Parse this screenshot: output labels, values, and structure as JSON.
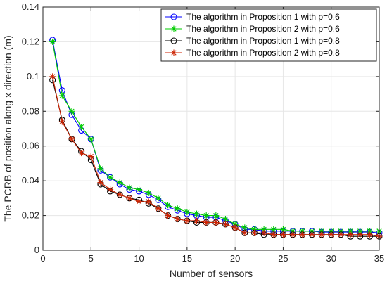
{
  "chart_data": {
    "type": "line",
    "title": "",
    "xlabel": "Number of sensors",
    "ylabel": "The PCRB of position along x direction (m)",
    "xlim": [
      0,
      35
    ],
    "ylim": [
      0,
      0.14
    ],
    "xticks": [
      0,
      5,
      10,
      15,
      20,
      25,
      30,
      35
    ],
    "yticks": [
      0,
      0.02,
      0.04,
      0.06,
      0.08,
      0.1,
      0.12,
      0.14
    ],
    "xtick_labels": [
      "0",
      "5",
      "10",
      "15",
      "20",
      "25",
      "30",
      "35"
    ],
    "ytick_labels": [
      "0",
      "0.02",
      "0.04",
      "0.06",
      "0.08",
      "0.1",
      "0.12",
      "0.14"
    ],
    "grid": true,
    "legend_position": "top-right",
    "x": [
      1,
      2,
      3,
      4,
      5,
      6,
      7,
      8,
      9,
      10,
      11,
      12,
      13,
      14,
      15,
      16,
      17,
      18,
      19,
      20,
      21,
      22,
      23,
      24,
      25,
      26,
      27,
      28,
      29,
      30,
      31,
      32,
      33,
      34,
      35
    ],
    "series": [
      {
        "name": "The algorithm in Proposition 1 with p=0.6",
        "color": "#0000ff",
        "marker": "circle",
        "values": [
          0.121,
          0.092,
          0.078,
          0.069,
          0.064,
          0.046,
          0.042,
          0.038,
          0.035,
          0.034,
          0.032,
          0.029,
          0.025,
          0.023,
          0.021,
          0.02,
          0.019,
          0.019,
          0.017,
          0.015,
          0.012,
          0.012,
          0.011,
          0.011,
          0.011,
          0.011,
          0.011,
          0.011,
          0.0105,
          0.0105,
          0.0105,
          0.0105,
          0.0105,
          0.0105,
          0.01
        ]
      },
      {
        "name": "The algorithm in Proposition 2 with p=0.6",
        "color": "#00cc00",
        "marker": "asterisk",
        "values": [
          0.12,
          0.089,
          0.08,
          0.071,
          0.064,
          0.047,
          0.042,
          0.039,
          0.036,
          0.035,
          0.033,
          0.03,
          0.026,
          0.024,
          0.022,
          0.021,
          0.02,
          0.02,
          0.018,
          0.015,
          0.013,
          0.012,
          0.012,
          0.012,
          0.012,
          0.011,
          0.011,
          0.011,
          0.011,
          0.011,
          0.011,
          0.011,
          0.011,
          0.011,
          0.011
        ]
      },
      {
        "name": "The algorithm in Proposition 1 with p=0.8",
        "color": "#000000",
        "marker": "circle",
        "values": [
          0.098,
          0.075,
          0.064,
          0.057,
          0.052,
          0.038,
          0.034,
          0.032,
          0.03,
          0.029,
          0.027,
          0.024,
          0.02,
          0.018,
          0.017,
          0.016,
          0.016,
          0.016,
          0.015,
          0.013,
          0.01,
          0.01,
          0.009,
          0.009,
          0.009,
          0.009,
          0.009,
          0.009,
          0.009,
          0.009,
          0.009,
          0.008,
          0.008,
          0.008,
          0.008
        ]
      },
      {
        "name": "The algorithm in Proposition 2 with p=0.8",
        "color": "#cc2200",
        "marker": "asterisk",
        "values": [
          0.1,
          0.074,
          0.064,
          0.056,
          0.054,
          0.039,
          0.035,
          0.032,
          0.03,
          0.028,
          0.028,
          0.024,
          0.02,
          0.018,
          0.017,
          0.017,
          0.016,
          0.016,
          0.015,
          0.013,
          0.01,
          0.01,
          0.01,
          0.009,
          0.009,
          0.009,
          0.009,
          0.009,
          0.009,
          0.009,
          0.009,
          0.009,
          0.009,
          0.009,
          0.008
        ]
      }
    ]
  }
}
